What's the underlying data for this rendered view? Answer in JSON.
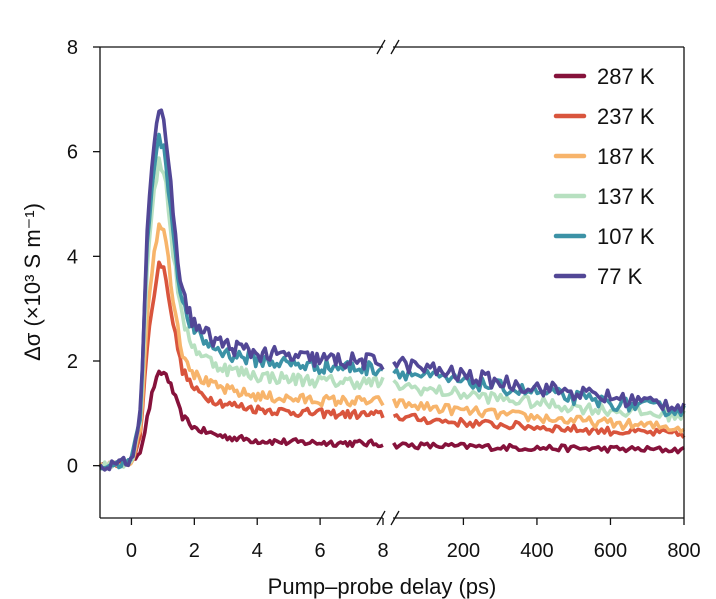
{
  "chart_data": {
    "type": "line",
    "xlabel": "Pump–probe delay (ps)",
    "ylabel": "Δσ (×10³ S m⁻¹)",
    "x_axis_break": true,
    "xlim_left": [
      -1,
      8
    ],
    "xlim_right": [
      8.5,
      800
    ],
    "ylim": [
      -1,
      8
    ],
    "x_ticks_left": [
      0,
      2,
      4,
      6,
      8
    ],
    "x_ticks_right": [
      200,
      400,
      600,
      800
    ],
    "y_ticks": [
      0,
      2,
      4,
      6,
      8
    ],
    "grid": false,
    "legend_position": "top-right",
    "series": [
      {
        "name": "287 K",
        "color": "#86123b",
        "peak": 1.78,
        "plateau": 0.45,
        "tail_800": 0.3,
        "x_left": [
          -1,
          -0.5,
          0,
          0.3,
          0.5,
          0.7,
          0.9,
          1.1,
          1.3,
          1.6,
          2,
          2.5,
          3,
          4,
          5,
          6,
          7,
          8
        ],
        "y_left": [
          0.0,
          0.02,
          0.05,
          0.3,
          0.9,
          1.5,
          1.78,
          1.75,
          1.45,
          0.95,
          0.72,
          0.62,
          0.55,
          0.48,
          0.45,
          0.44,
          0.43,
          0.42
        ],
        "x_right": [
          8.5,
          100,
          200,
          300,
          400,
          500,
          600,
          700,
          800
        ],
        "y_right": [
          0.4,
          0.38,
          0.37,
          0.35,
          0.34,
          0.33,
          0.32,
          0.31,
          0.3
        ]
      },
      {
        "name": "237 K",
        "color": "#d9553d",
        "peak": 3.95,
        "plateau": 1.0,
        "tail_800": 0.6,
        "x_left": [
          -1,
          -0.5,
          0,
          0.3,
          0.5,
          0.7,
          0.9,
          1.1,
          1.3,
          1.6,
          2,
          2.5,
          3,
          4,
          5,
          6,
          7,
          8
        ],
        "y_left": [
          0.0,
          0.02,
          0.06,
          0.6,
          2.3,
          3.2,
          3.95,
          3.6,
          2.8,
          1.85,
          1.45,
          1.28,
          1.18,
          1.08,
          1.03,
          1.0,
          0.98,
          0.97
        ],
        "x_right": [
          8.5,
          100,
          200,
          300,
          400,
          500,
          600,
          700,
          800
        ],
        "y_right": [
          0.95,
          0.88,
          0.82,
          0.78,
          0.74,
          0.7,
          0.66,
          0.63,
          0.6
        ]
      },
      {
        "name": "187 K",
        "color": "#f7b46b",
        "peak": 4.72,
        "plateau": 1.25,
        "tail_800": 0.72,
        "x_left": [
          -1,
          -0.5,
          0,
          0.3,
          0.5,
          0.7,
          0.9,
          1.1,
          1.3,
          1.6,
          2,
          2.5,
          3,
          4,
          5,
          6,
          7,
          8
        ],
        "y_left": [
          0.0,
          0.02,
          0.07,
          0.7,
          2.9,
          4.0,
          4.72,
          4.3,
          3.3,
          2.2,
          1.75,
          1.55,
          1.45,
          1.33,
          1.28,
          1.25,
          1.23,
          1.22
        ],
        "x_right": [
          8.5,
          100,
          200,
          300,
          400,
          500,
          600,
          700,
          800
        ],
        "y_right": [
          1.2,
          1.12,
          1.05,
          0.98,
          0.92,
          0.86,
          0.81,
          0.76,
          0.72
        ]
      },
      {
        "name": "137 K",
        "color": "#b7e0c0",
        "peak": 5.85,
        "plateau": 1.6,
        "tail_800": 0.95,
        "x_left": [
          -1,
          -0.5,
          0,
          0.3,
          0.5,
          0.7,
          0.9,
          1.1,
          1.3,
          1.6,
          2,
          2.5,
          3,
          4,
          5,
          6,
          7,
          8
        ],
        "y_left": [
          0.0,
          0.02,
          0.08,
          0.9,
          3.8,
          5.2,
          5.85,
          5.4,
          4.2,
          2.8,
          2.25,
          2.0,
          1.85,
          1.72,
          1.66,
          1.62,
          1.6,
          1.58
        ],
        "x_right": [
          8.5,
          100,
          200,
          300,
          400,
          500,
          600,
          700,
          800
        ],
        "y_right": [
          1.55,
          1.45,
          1.37,
          1.28,
          1.2,
          1.12,
          1.06,
          1.0,
          0.95
        ]
      },
      {
        "name": "107 K",
        "color": "#3c92a6",
        "peak": 6.3,
        "plateau": 1.9,
        "tail_800": 1.05,
        "x_left": [
          -1,
          -0.5,
          0,
          0.3,
          0.5,
          0.7,
          0.9,
          1.1,
          1.3,
          1.6,
          2,
          2.5,
          3,
          4,
          5,
          6,
          7,
          8
        ],
        "y_left": [
          0.0,
          0.02,
          0.09,
          1.0,
          4.3,
          5.7,
          6.3,
          5.8,
          4.6,
          3.1,
          2.55,
          2.3,
          2.15,
          2.02,
          1.95,
          1.9,
          1.88,
          1.86
        ],
        "x_right": [
          8.5,
          100,
          200,
          300,
          400,
          500,
          600,
          700,
          800
        ],
        "y_right": [
          1.82,
          1.7,
          1.6,
          1.5,
          1.4,
          1.3,
          1.2,
          1.12,
          1.05
        ]
      },
      {
        "name": "77 K",
        "color": "#524796",
        "peak": 6.75,
        "plateau": 2.0,
        "tail_800": 1.15,
        "x_left": [
          -1,
          -0.5,
          0,
          0.3,
          0.5,
          0.7,
          0.9,
          1.1,
          1.3,
          1.6,
          2,
          2.5,
          3,
          4,
          5,
          6,
          7,
          8
        ],
        "y_left": [
          0.0,
          0.02,
          0.1,
          1.1,
          4.6,
          6.1,
          6.75,
          6.3,
          5.0,
          3.3,
          2.7,
          2.45,
          2.3,
          2.15,
          2.08,
          2.03,
          2.0,
          1.98
        ],
        "x_right": [
          8.5,
          100,
          200,
          300,
          400,
          500,
          600,
          700,
          800
        ],
        "y_right": [
          1.98,
          1.85,
          1.72,
          1.6,
          1.5,
          1.4,
          1.3,
          1.22,
          1.15
        ]
      }
    ]
  }
}
